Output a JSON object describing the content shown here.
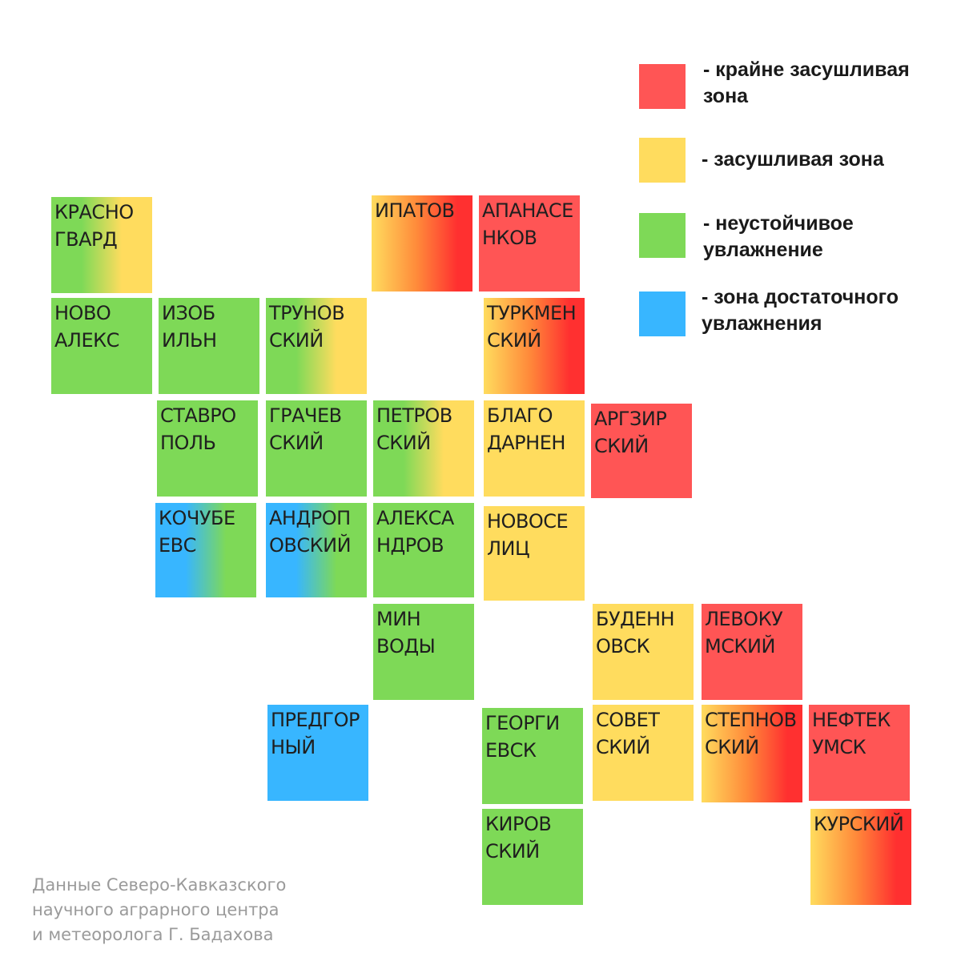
{
  "colors": {
    "red": "#ff5555",
    "deep_red": "#ff3030",
    "orange": "#ff8a3a",
    "yellow": "#ffdc5e",
    "green": "#7ed957",
    "blue": "#38b6ff"
  },
  "legend": [
    {
      "color": "red",
      "line1": "- крайне засушливая",
      "line2": "зона"
    },
    {
      "color": "yellow",
      "line1": "- засушливая зона",
      "line2": ""
    },
    {
      "color": "green",
      "line1": "- неустойчивое",
      "line2": "увлажнение"
    },
    {
      "color": "blue",
      "line1": "- зона достаточного",
      "line2": "увлажнения"
    }
  ],
  "districts": [
    {
      "line1": "КРАСНО",
      "line2": "ГВАРД",
      "zones": [
        "green",
        "yellow"
      ]
    },
    {
      "line1": "ИПАТОВ",
      "line2": "",
      "zones": [
        "yellow",
        "red"
      ]
    },
    {
      "line1": "АПАНАСЕ",
      "line2": "НКОВ",
      "zones": [
        "red"
      ]
    },
    {
      "line1": "НОВО",
      "line2": "АЛЕКС",
      "zones": [
        "green"
      ]
    },
    {
      "line1": "ИЗОБ",
      "line2": "ИЛЬН",
      "zones": [
        "green"
      ]
    },
    {
      "line1": "ТРУНОВ",
      "line2": "СКИЙ",
      "zones": [
        "green",
        "yellow"
      ]
    },
    {
      "line1": "ТУРКМЕН",
      "line2": "СКИЙ",
      "zones": [
        "yellow",
        "red"
      ]
    },
    {
      "line1": "СТАВРО",
      "line2": "ПОЛЬ",
      "zones": [
        "green"
      ]
    },
    {
      "line1": "ГРАЧЕВ",
      "line2": "СКИЙ",
      "zones": [
        "green"
      ]
    },
    {
      "line1": "ПЕТРОВ",
      "line2": "СКИЙ",
      "zones": [
        "green",
        "yellow"
      ]
    },
    {
      "line1": "БЛАГО",
      "line2": "ДАРНЕН",
      "zones": [
        "yellow"
      ]
    },
    {
      "line1": "АРГЗИР",
      "line2": "СКИЙ",
      "zones": [
        "red"
      ]
    },
    {
      "line1": "КОЧУБЕ",
      "line2": "ЕВС",
      "zones": [
        "blue",
        "green"
      ]
    },
    {
      "line1": "АНДРОП",
      "line2": "ОВСКИЙ",
      "zones": [
        "blue",
        "green"
      ]
    },
    {
      "line1": "АЛЕКСА",
      "line2": "НДРОВ",
      "zones": [
        "green"
      ]
    },
    {
      "line1": "НОВОСЕ",
      "line2": "ЛИЦ",
      "zones": [
        "yellow"
      ]
    },
    {
      "line1": "МИН",
      "line2": "ВОДЫ",
      "zones": [
        "green"
      ]
    },
    {
      "line1": "БУДЕНН",
      "line2": "ОВСК",
      "zones": [
        "yellow"
      ]
    },
    {
      "line1": "ЛЕВОКУ",
      "line2": "МСКИЙ",
      "zones": [
        "red"
      ]
    },
    {
      "line1": "ПРЕДГОР",
      "line2": "НЫЙ",
      "zones": [
        "blue"
      ]
    },
    {
      "line1": "ГЕОРГИ",
      "line2": "ЕВСК",
      "zones": [
        "green"
      ]
    },
    {
      "line1": "СОВЕТ",
      "line2": "СКИЙ",
      "zones": [
        "yellow"
      ]
    },
    {
      "line1": "СТЕПНОВ",
      "line2": "СКИЙ",
      "zones": [
        "yellow",
        "red"
      ]
    },
    {
      "line1": "НЕФТЕК",
      "line2": "УМСК",
      "zones": [
        "red"
      ]
    },
    {
      "line1": "КИРОВ",
      "line2": "СКИЙ",
      "zones": [
        "green"
      ]
    },
    {
      "line1": "КУРСКИЙ",
      "line2": "",
      "zones": [
        "yellow",
        "red"
      ]
    }
  ],
  "footer": {
    "line1": "Данные Северо-Кавказского",
    "line2": "научного аграрного центра",
    "line3": "и метеоролога Г. Бадахова"
  }
}
